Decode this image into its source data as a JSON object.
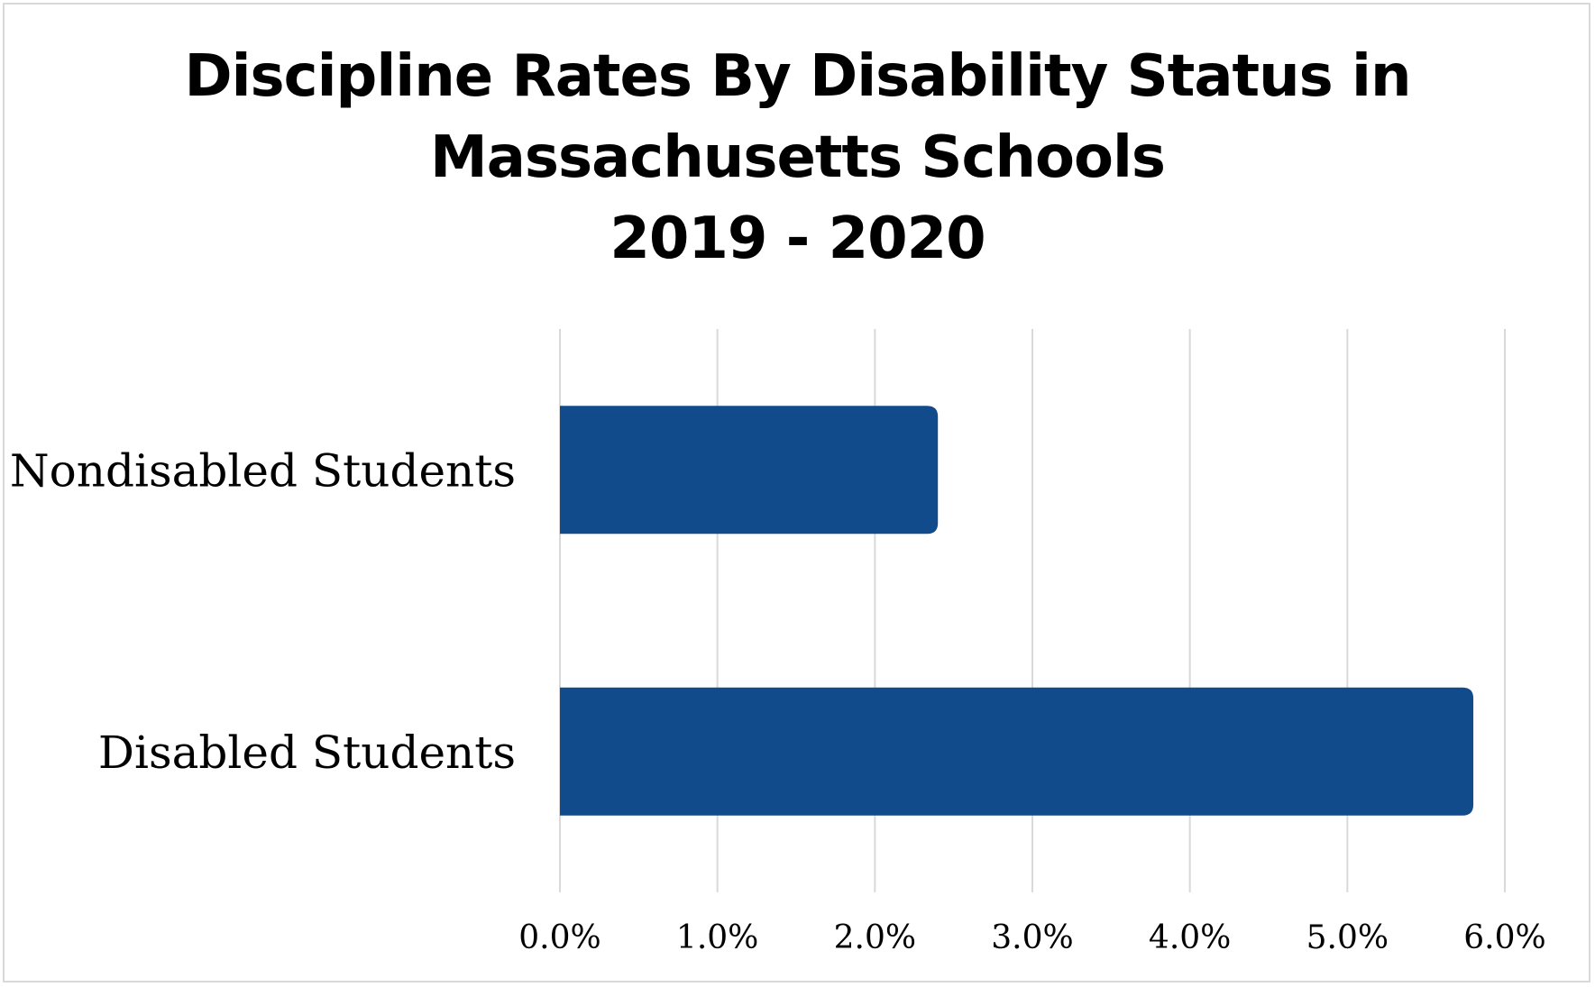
{
  "chart_data": {
    "type": "bar",
    "orientation": "horizontal",
    "title_lines": [
      "Discipline Rates By Disability Status in",
      "Massachusetts Schools",
      "2019 - 2020"
    ],
    "categories": [
      "Nondisabled Students",
      "Disabled Students"
    ],
    "values": [
      2.4,
      5.8
    ],
    "value_unit": "%",
    "xlim": [
      0,
      6
    ],
    "x_ticks": [
      0,
      1,
      2,
      3,
      4,
      5,
      6
    ],
    "x_tick_labels": [
      "0.0%",
      "1.0%",
      "2.0%",
      "3.0%",
      "4.0%",
      "5.0%",
      "6.0%"
    ],
    "grid": "vertical",
    "legend": "none",
    "bar_color": "#114b8c",
    "grid_color": "#d9d9d9"
  }
}
